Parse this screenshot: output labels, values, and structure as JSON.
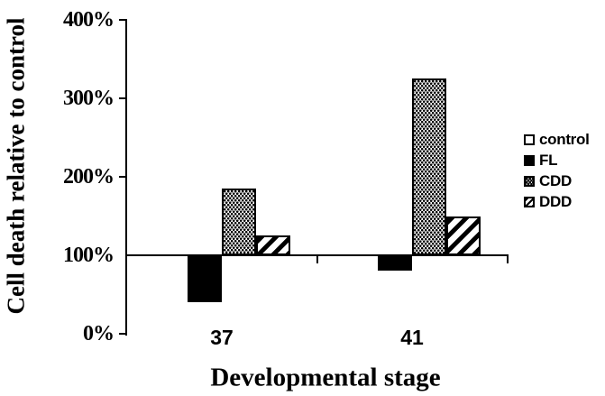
{
  "figure": {
    "background": "#ffffff",
    "ink": "#000000"
  },
  "chart_data": {
    "type": "bar",
    "title": "",
    "xlabel": "Developmental stage",
    "ylabel": "Cell death relative to control",
    "categories": [
      "37",
      "41"
    ],
    "series": [
      {
        "name": "control",
        "pattern": "empty",
        "values": [
          100,
          100
        ]
      },
      {
        "name": "FL",
        "pattern": "solid",
        "values": [
          40,
          80
        ]
      },
      {
        "name": "CDD",
        "pattern": "dots",
        "values": [
          185,
          325
        ]
      },
      {
        "name": "DDD",
        "pattern": "hatch",
        "values": [
          125,
          150
        ]
      }
    ],
    "baseline": 100,
    "ylim": [
      0,
      400
    ],
    "yticks": [
      {
        "value": 0,
        "label": "0%"
      },
      {
        "value": 100,
        "label": "100%"
      },
      {
        "value": 200,
        "label": "200%"
      },
      {
        "value": 300,
        "label": "300%"
      },
      {
        "value": 400,
        "label": "400%"
      }
    ],
    "legend": [
      "control",
      "FL",
      "CDD",
      "DDD"
    ],
    "legend_position": "right",
    "grid": false
  }
}
